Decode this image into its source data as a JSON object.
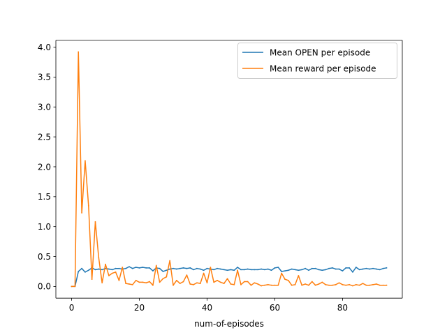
{
  "chart_data": {
    "type": "line",
    "title": "",
    "xlabel": "num-of-episodes",
    "ylabel": "",
    "xlim": [
      -4.65,
      97.65
    ],
    "ylim": [
      -0.196,
      4.116
    ],
    "xticks": [
      0,
      20,
      40,
      60,
      80
    ],
    "yticks": [
      0.0,
      0.5,
      1.0,
      1.5,
      2.0,
      2.5,
      3.0,
      3.5,
      4.0
    ],
    "grid": false,
    "legend_position": "upper-right",
    "series": [
      {
        "name": "Mean OPEN per episode",
        "color": "#1f77b4",
        "x": [
          0,
          1,
          2,
          3,
          4,
          5,
          6,
          7,
          8,
          9,
          10,
          11,
          12,
          13,
          14,
          15,
          16,
          17,
          18,
          19,
          20,
          21,
          22,
          23,
          24,
          25,
          26,
          27,
          28,
          29,
          30,
          31,
          32,
          33,
          34,
          35,
          36,
          37,
          38,
          39,
          40,
          41,
          42,
          43,
          44,
          45,
          46,
          47,
          48,
          49,
          50,
          51,
          52,
          53,
          54,
          55,
          56,
          57,
          58,
          59,
          60,
          61,
          62,
          63,
          64,
          65,
          66,
          67,
          68,
          69,
          70,
          71,
          72,
          73,
          74,
          75,
          76,
          77,
          78,
          79,
          80,
          81,
          82,
          83,
          84,
          85,
          86,
          87,
          88,
          89,
          90,
          91,
          92,
          93
        ],
        "values": [
          0.0,
          0.0,
          0.25,
          0.3,
          0.24,
          0.27,
          0.31,
          0.28,
          0.29,
          0.28,
          0.3,
          0.29,
          0.28,
          0.3,
          0.3,
          0.29,
          0.3,
          0.33,
          0.3,
          0.32,
          0.31,
          0.32,
          0.31,
          0.31,
          0.26,
          0.31,
          0.3,
          0.25,
          0.27,
          0.29,
          0.3,
          0.29,
          0.3,
          0.31,
          0.3,
          0.31,
          0.28,
          0.3,
          0.29,
          0.27,
          0.3,
          0.29,
          0.28,
          0.3,
          0.29,
          0.28,
          0.27,
          0.28,
          0.27,
          0.32,
          0.28,
          0.28,
          0.29,
          0.28,
          0.28,
          0.28,
          0.29,
          0.28,
          0.29,
          0.27,
          0.31,
          0.32,
          0.25,
          0.26,
          0.27,
          0.29,
          0.28,
          0.27,
          0.28,
          0.3,
          0.27,
          0.3,
          0.3,
          0.28,
          0.27,
          0.28,
          0.3,
          0.31,
          0.29,
          0.29,
          0.26,
          0.31,
          0.31,
          0.24,
          0.32,
          0.28,
          0.29,
          0.3,
          0.29,
          0.3,
          0.29,
          0.28,
          0.3,
          0.31
        ]
      },
      {
        "name": "Mean reward per episode",
        "color": "#ff7f0e",
        "x": [
          0,
          1,
          2,
          3,
          4,
          5,
          6,
          7,
          8,
          9,
          10,
          11,
          12,
          13,
          14,
          15,
          16,
          17,
          18,
          19,
          20,
          21,
          22,
          23,
          24,
          25,
          26,
          27,
          28,
          29,
          30,
          31,
          32,
          33,
          34,
          35,
          36,
          37,
          38,
          39,
          40,
          41,
          42,
          43,
          44,
          45,
          46,
          47,
          48,
          49,
          50,
          51,
          52,
          53,
          54,
          55,
          56,
          57,
          58,
          59,
          60,
          61,
          62,
          63,
          64,
          65,
          66,
          67,
          68,
          69,
          70,
          71,
          72,
          73,
          74,
          75,
          76,
          77,
          78,
          79,
          80,
          81,
          82,
          83,
          84,
          85,
          86,
          87,
          88,
          89,
          90,
          91,
          92,
          93
        ],
        "values": [
          0.0,
          0.0,
          3.92,
          1.23,
          2.1,
          1.35,
          0.12,
          1.08,
          0.48,
          0.06,
          0.37,
          0.18,
          0.22,
          0.24,
          0.1,
          0.32,
          0.05,
          0.04,
          0.03,
          0.1,
          0.07,
          0.07,
          0.06,
          0.08,
          0.02,
          0.35,
          0.07,
          0.13,
          0.16,
          0.43,
          0.02,
          0.1,
          0.05,
          0.08,
          0.19,
          0.04,
          0.03,
          0.06,
          0.05,
          0.22,
          0.06,
          0.32,
          0.07,
          0.1,
          0.07,
          0.05,
          0.13,
          0.04,
          0.03,
          0.27,
          0.03,
          0.08,
          0.08,
          0.02,
          0.06,
          0.04,
          0.01,
          0.02,
          0.03,
          0.02,
          0.02,
          0.02,
          0.22,
          0.12,
          0.1,
          0.02,
          0.03,
          0.18,
          0.02,
          0.04,
          0.02,
          0.08,
          0.02,
          0.04,
          0.07,
          0.03,
          0.02,
          0.02,
          0.03,
          0.06,
          0.03,
          0.02,
          0.03,
          0.01,
          0.03,
          0.02,
          0.05,
          0.02,
          0.02,
          0.03,
          0.04,
          0.02,
          0.02,
          0.02
        ]
      }
    ]
  }
}
